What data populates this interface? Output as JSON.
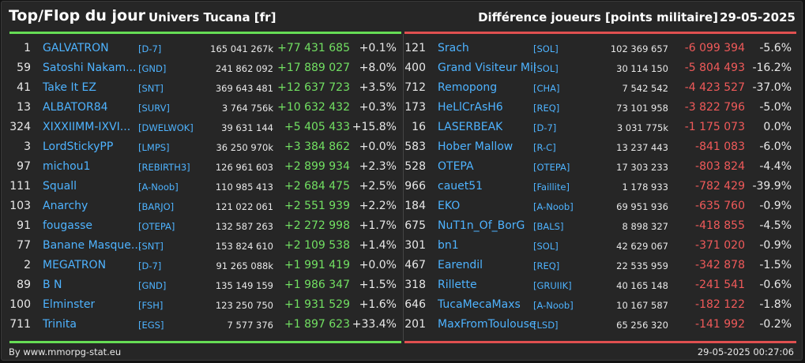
{
  "header": {
    "title": "Top/Flop du jour",
    "universe": "Univers Tucana [fr]",
    "metric": "Différence joueurs [points militaire]",
    "date": "29-05-2025"
  },
  "colors": {
    "top_accent": "#66dd55",
    "flop_accent": "#e05050",
    "name_link": "#4eb3ff"
  },
  "top": [
    {
      "rank": "1",
      "name": "GALVATRON",
      "alliance": "[D-7]",
      "points": "165 041 267k",
      "delta": "+77 431 685",
      "pct": "+0.1%"
    },
    {
      "rank": "59",
      "name": "Satoshi Nakam...",
      "alliance": "[GND]",
      "points": "241 862 092",
      "delta": "+17 889 027",
      "pct": "+8.0%"
    },
    {
      "rank": "41",
      "name": "Take It EZ",
      "alliance": "[SNT]",
      "points": "369 643 481",
      "delta": "+12 637 723",
      "pct": "+3.5%"
    },
    {
      "rank": "13",
      "name": "ALBATOR84",
      "alliance": "[SURV]",
      "points": "3 764 756k",
      "delta": "+10 632 432",
      "pct": "+0.3%"
    },
    {
      "rank": "324",
      "name": "XIXXIIMM-IXVI...",
      "alliance": "[DWELWOK]",
      "points": "39 631 144",
      "delta": "+5 405 433",
      "pct": "+15.8%"
    },
    {
      "rank": "3",
      "name": "LordStickyPP",
      "alliance": "[LMPS]",
      "points": "36 250 970k",
      "delta": "+3 384 862",
      "pct": "+0.0%"
    },
    {
      "rank": "97",
      "name": "michou1",
      "alliance": "[REBIRTH3]",
      "points": "126 961 603",
      "delta": "+2 899 934",
      "pct": "+2.3%"
    },
    {
      "rank": "111",
      "name": "Squall",
      "alliance": "[A-Noob]",
      "points": "110 985 413",
      "delta": "+2 684 475",
      "pct": "+2.5%"
    },
    {
      "rank": "103",
      "name": "Anarchy",
      "alliance": "[BARJO]",
      "points": "121 022 061",
      "delta": "+2 551 939",
      "pct": "+2.2%"
    },
    {
      "rank": "91",
      "name": "fougasse",
      "alliance": "[OTEPA]",
      "points": "132 587 263",
      "delta": "+2 272 998",
      "pct": "+1.7%"
    },
    {
      "rank": "77",
      "name": "Banane Masque...",
      "alliance": "[SNT]",
      "points": "153 824 610",
      "delta": "+2 109 538",
      "pct": "+1.4%"
    },
    {
      "rank": "2",
      "name": "MEGATRON",
      "alliance": "[D-7]",
      "points": "91 265 088k",
      "delta": "+1 991 419",
      "pct": "+0.0%"
    },
    {
      "rank": "89",
      "name": "B N",
      "alliance": "[GND]",
      "points": "135 149 159",
      "delta": "+1 986 347",
      "pct": "+1.5%"
    },
    {
      "rank": "100",
      "name": "Elminster",
      "alliance": "[FSH]",
      "points": "123 250 750",
      "delta": "+1 931 529",
      "pct": "+1.6%"
    },
    {
      "rank": "711",
      "name": "Trinita",
      "alliance": "[EGS]",
      "points": "7 577 376",
      "delta": "+1 897 623",
      "pct": "+33.4%"
    }
  ],
  "flop": [
    {
      "rank": "121",
      "name": "Srach",
      "alliance": "[SOL]",
      "points": "102 369 657",
      "delta": "-6 099 394",
      "pct": "-5.6%"
    },
    {
      "rank": "400",
      "name": "Grand Visiteur Mike",
      "alliance": "[SOL]",
      "points": "30 114 150",
      "delta": "-5 804 493",
      "pct": "-16.2%"
    },
    {
      "rank": "712",
      "name": "Remopong",
      "alliance": "[CHA]",
      "points": "7 542 542",
      "delta": "-4 423 527",
      "pct": "-37.0%"
    },
    {
      "rank": "173",
      "name": "HeLlCrAsH6",
      "alliance": "[REQ]",
      "points": "73 101 958",
      "delta": "-3 822 796",
      "pct": "-5.0%"
    },
    {
      "rank": "16",
      "name": "LASERBEAK",
      "alliance": "[D-7]",
      "points": "3 031 775k",
      "delta": "-1 175 073",
      "pct": "0.0%"
    },
    {
      "rank": "583",
      "name": "Hober Mallow",
      "alliance": "[R-C]",
      "points": "13 237 443",
      "delta": "-841 083",
      "pct": "-6.0%"
    },
    {
      "rank": "528",
      "name": "OTEPA",
      "alliance": "[OTEPA]",
      "points": "17 303 233",
      "delta": "-803 824",
      "pct": "-4.4%"
    },
    {
      "rank": "966",
      "name": "cauet51",
      "alliance": "[Faillite]",
      "points": "1 178 933",
      "delta": "-782 429",
      "pct": "-39.9%"
    },
    {
      "rank": "184",
      "name": "EKO",
      "alliance": "[A-Noob]",
      "points": "69 951 936",
      "delta": "-635 760",
      "pct": "-0.9%"
    },
    {
      "rank": "675",
      "name": "NuT1n_Of_BorG",
      "alliance": "[BALS]",
      "points": "8 898 327",
      "delta": "-418 855",
      "pct": "-4.5%"
    },
    {
      "rank": "301",
      "name": "bn1",
      "alliance": "[SOL]",
      "points": "42 629 067",
      "delta": "-371 020",
      "pct": "-0.9%"
    },
    {
      "rank": "467",
      "name": "Earendil",
      "alliance": "[REQ]",
      "points": "22 535 959",
      "delta": "-342 878",
      "pct": "-1.5%"
    },
    {
      "rank": "318",
      "name": "Rillette",
      "alliance": "[GRUIIK]",
      "points": "40 165 148",
      "delta": "-241 541",
      "pct": "-0.6%"
    },
    {
      "rank": "646",
      "name": "TucaMecaMaxs",
      "alliance": "[A-Noob]",
      "points": "10 167 587",
      "delta": "-182 122",
      "pct": "-1.8%"
    },
    {
      "rank": "201",
      "name": "MaxFromToulouse",
      "alliance": "[LSD]",
      "points": "65 256 320",
      "delta": "-141 992",
      "pct": "-0.2%"
    }
  ],
  "footer": {
    "credit": "By www.mmorpg-stat.eu",
    "timestamp": "29-05-2025 00:27:06"
  }
}
